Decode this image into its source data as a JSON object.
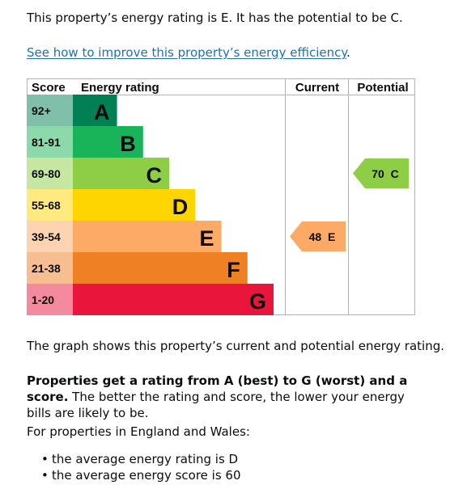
{
  "intro": "This property’s energy rating is E. It has the potential to be C.",
  "improve_link": "See how to improve this property’s energy efficiency",
  "improve_link_suffix": ".",
  "chart_data": {
    "type": "table",
    "headers": {
      "score": "Score",
      "rating": "Energy rating",
      "current": "Current",
      "potential": "Potential"
    },
    "bands": [
      {
        "score": "92+",
        "letter": "A",
        "color": "#008054",
        "score_bg": "#80bfa9",
        "fraction": 0.22
      },
      {
        "score": "81-91",
        "letter": "B",
        "color": "#19b459",
        "score_bg": "#8cd9ac",
        "fraction": 0.35
      },
      {
        "score": "69-80",
        "letter": "C",
        "color": "#8dce46",
        "score_bg": "#c6e7a2",
        "fraction": 0.48
      },
      {
        "score": "55-68",
        "letter": "D",
        "color": "#ffd500",
        "score_bg": "#ffea80",
        "fraction": 0.61
      },
      {
        "score": "39-54",
        "letter": "E",
        "color": "#fcaa65",
        "score_bg": "#fdd4b2",
        "fraction": 0.74
      },
      {
        "score": "21-38",
        "letter": "F",
        "color": "#ef8023",
        "score_bg": "#f7bf91",
        "fraction": 0.87
      },
      {
        "score": "1-20",
        "letter": "G",
        "color": "#e9153b",
        "score_bg": "#f48a9d",
        "fraction": 1.0
      }
    ],
    "current": {
      "score": 48,
      "band": "E",
      "label": "48  E",
      "color": "#fcaa65"
    },
    "potential": {
      "score": 70,
      "band": "C",
      "label": "70  C",
      "color": "#8dce46"
    }
  },
  "graph_caption": "The graph shows this property’s current and potential energy rating.",
  "scale_bold": "Properties get a rating from A (best) to G (worst) and a score.",
  "scale_rest": " The better the rating and score, the lower your energy bills are likely to be.",
  "region": "For properties in England and Wales:",
  "averages": [
    "the average energy rating is D",
    "the average energy score is 60"
  ]
}
